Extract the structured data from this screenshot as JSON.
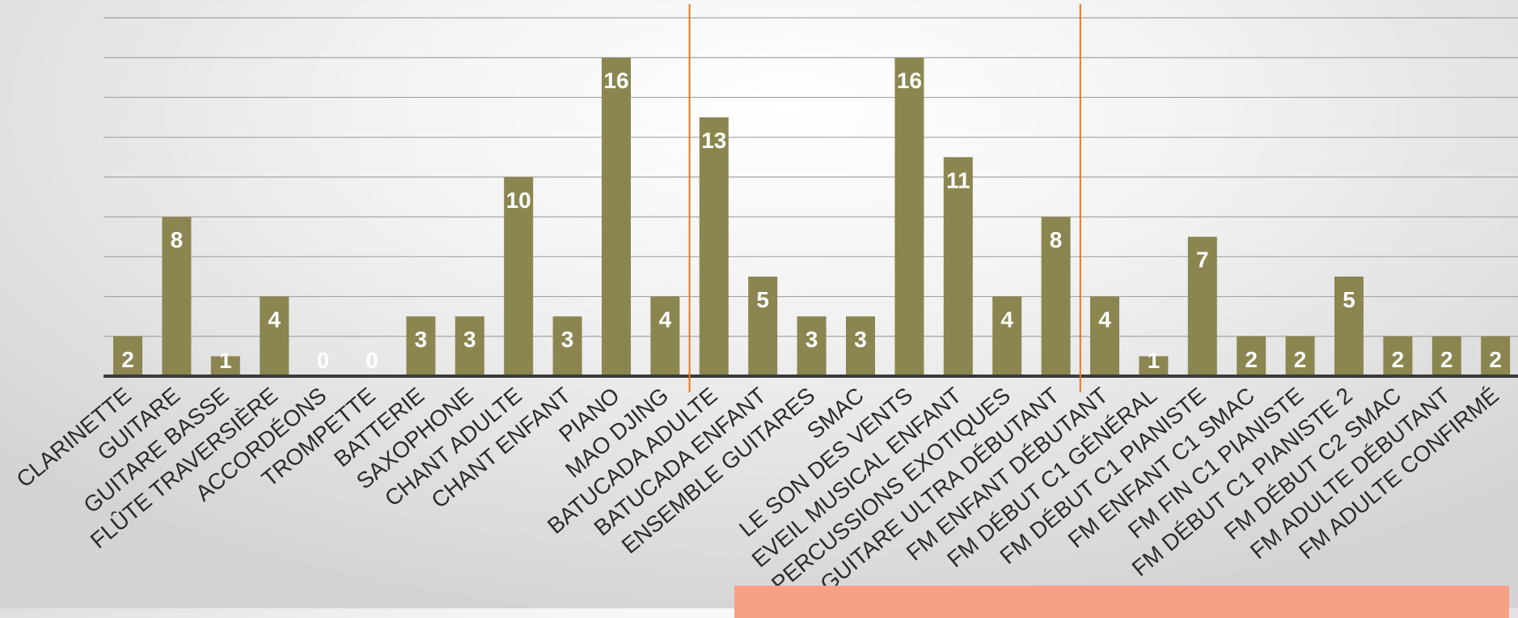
{
  "chart_data": {
    "type": "bar",
    "categories": [
      "CLARINETTE",
      "GUITARE",
      "GUITARE BASSE",
      "FLÛTE TRAVERSIÈRE",
      "ACCORDÉONS",
      "TROMPETTE",
      "BATTERIE",
      "SAXOPHONE",
      "CHANT ADULTE",
      "CHANT ENFANT",
      "PIANO",
      "MAO DJING",
      "BATUCADA ADULTE",
      "BATUCADA ENFANT",
      "ENSEMBLE GUITARES",
      "SMAC",
      "LE SON DES VENTS",
      "EVEIL MUSICAL ENFANT",
      "PERCUSSIONS EXOTIQUES",
      "GUITARE ULTRA DÉBUTANT",
      "FM ENFANT DÉBUTANT",
      "FM DÉBUT C1 GÉNÉRAL",
      "FM DÉBUT C1 PIANISTE",
      "FM ENFANT C1 SMAC",
      "FM FIN C1 PIANISTE",
      "FM DÉBUT C1 PIANISTE 2",
      "FM DÉBUT C2 SMAC",
      "FM ADULTE DÉBUTANT",
      "FM ADULTE CONFIRMÉ"
    ],
    "values": [
      2,
      8,
      1,
      4,
      0,
      0,
      3,
      3,
      10,
      3,
      16,
      4,
      13,
      5,
      3,
      3,
      16,
      11,
      4,
      8,
      4,
      1,
      7,
      2,
      2,
      5,
      2,
      2,
      2
    ],
    "ylim": [
      0,
      18
    ],
    "gridlines": true,
    "gridline_step": 2,
    "group_dividers_after_index": [
      11,
      19
    ],
    "title": "",
    "xlabel": "",
    "ylabel": ""
  },
  "colors": {
    "bar": "#8b8650",
    "value_label": "#ffffff",
    "category_label": "#2b2b2b",
    "divider": "#e07a1f",
    "gridline": "#a5a5a5",
    "axis": "#3a3a3a",
    "panel": "#f8a085"
  }
}
